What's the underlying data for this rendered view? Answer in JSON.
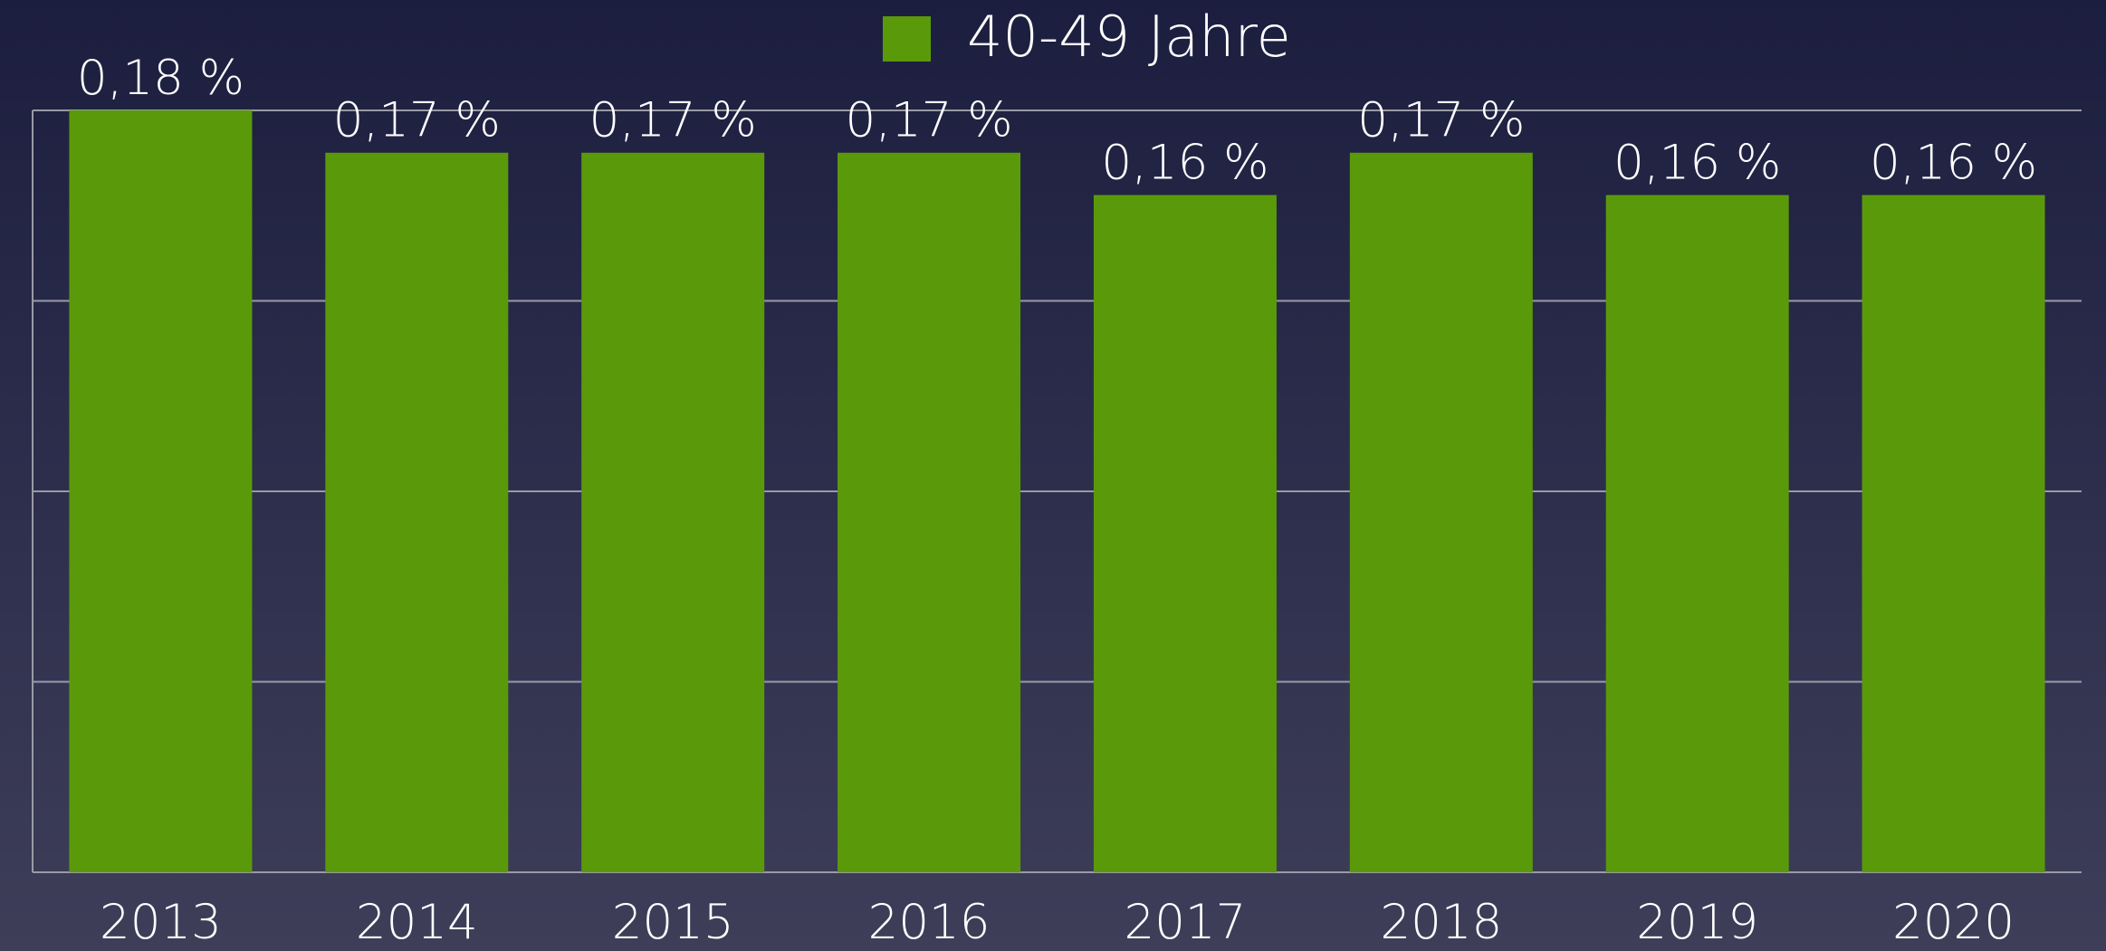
{
  "chart_data": {
    "type": "bar",
    "legend": "40-49 Jahre",
    "categories": [
      "2013",
      "2014",
      "2015",
      "2016",
      "2017",
      "2018",
      "2019",
      "2020"
    ],
    "values": [
      0.18,
      0.17,
      0.17,
      0.17,
      0.16,
      0.17,
      0.16,
      0.16
    ],
    "value_labels": [
      "0,18 %",
      "0,17 %",
      "0,17 %",
      "0,17 %",
      "0,16 %",
      "0,17 %",
      "0,16 %",
      "0,16 %"
    ],
    "color": "#5a9a0a",
    "ylim": [
      0,
      0.18
    ],
    "yticks": [
      0,
      0.045,
      0.09,
      0.135,
      0.18
    ],
    "grid": true
  }
}
